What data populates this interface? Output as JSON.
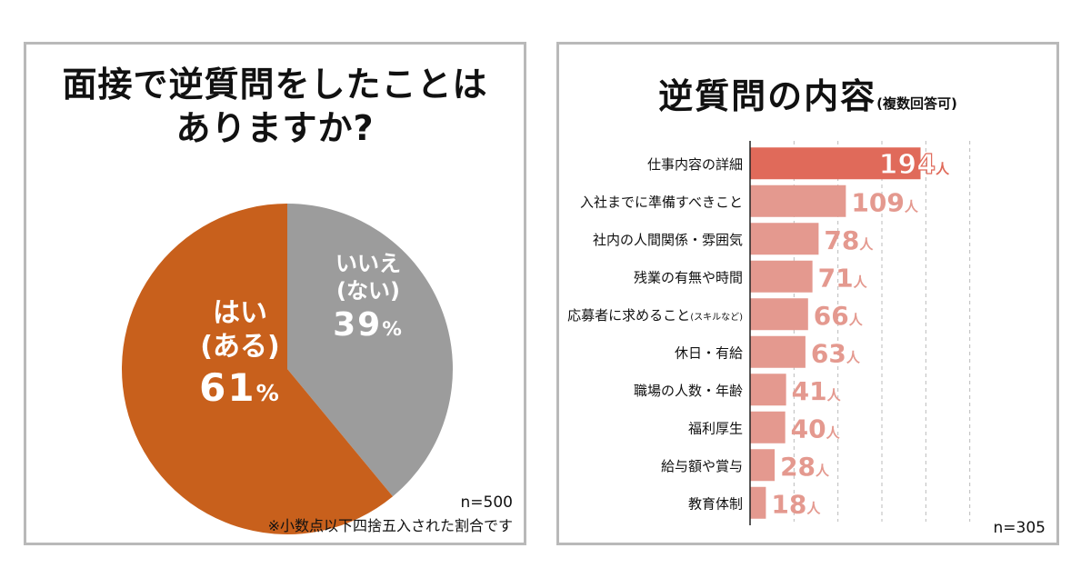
{
  "left_panel": {
    "title_line1": "面接で逆質問をしたことは",
    "title_line2": "ありますか?",
    "n": "n=500",
    "note": "※小数点以下四捨五入された割合です"
  },
  "right_panel": {
    "title": "逆質問の内容",
    "subtitle": "(複数回答可)",
    "n": "n=305"
  },
  "colors": {
    "yes": "#c8601c",
    "no": "#9c9c9c",
    "bar_top": "#e06a5a",
    "bar": "#e4998f",
    "value_label": "#e4998f"
  },
  "chart_data": [
    {
      "type": "pie",
      "slices": [
        {
          "label_line1": "はい",
          "label_line2": "(ある)",
          "value": 61,
          "pct_text": "61",
          "unit": "%"
        },
        {
          "label_line1": "いいえ",
          "label_line2": "(ない)",
          "value": 39,
          "pct_text": "39",
          "unit": "%"
        }
      ]
    },
    {
      "type": "bar",
      "orientation": "horizontal",
      "unit": "人",
      "categories": [
        {
          "text": "仕事内容の詳細",
          "suffix": ""
        },
        {
          "text": "入社までに準備すべきこと",
          "suffix": ""
        },
        {
          "text": "社内の人間関係・雰囲気",
          "suffix": ""
        },
        {
          "text": "残業の有無や時間",
          "suffix": ""
        },
        {
          "text": "応募者に求めること",
          "suffix": "(スキルなど)"
        },
        {
          "text": "休日・有給",
          "suffix": ""
        },
        {
          "text": "職場の人数・年齢",
          "suffix": ""
        },
        {
          "text": "福利厚生",
          "suffix": ""
        },
        {
          "text": "給与額や賞与",
          "suffix": ""
        },
        {
          "text": "教育体制",
          "suffix": ""
        }
      ],
      "values": [
        194,
        109,
        78,
        71,
        66,
        63,
        41,
        40,
        28,
        18
      ],
      "xlim": [
        0,
        300
      ],
      "grid": true
    }
  ]
}
